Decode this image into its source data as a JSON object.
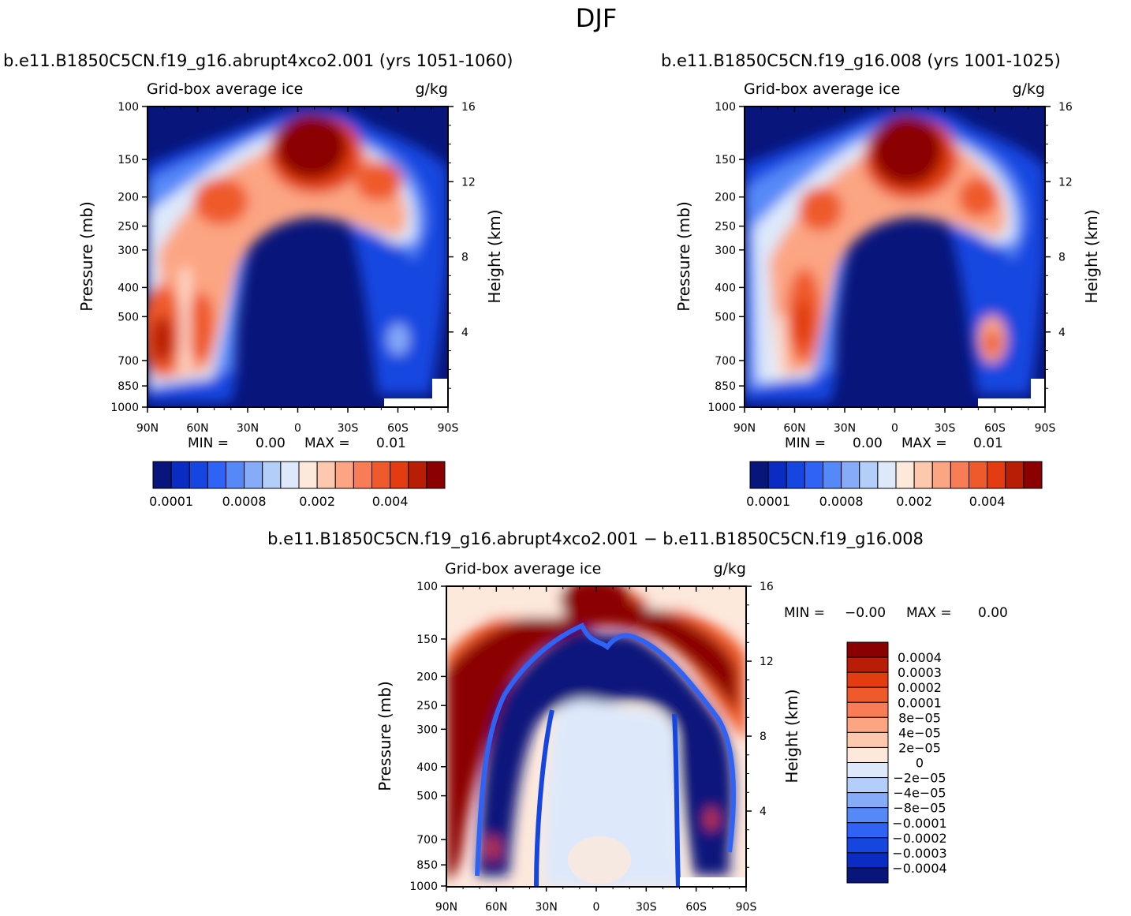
{
  "figure": {
    "title": "DJF",
    "units_label": "g/kg",
    "variable_label": "Grid-box average ice",
    "y_left_label": "Pressure (mb)",
    "y_right_label": "Height (km)"
  },
  "chart_data": [
    {
      "type": "heatmap",
      "title": "b.e11.B1850C5CN.f19_g16.abrupt4xco2.001 (yrs 1051-1060)",
      "subtitle": "Grid-box average ice",
      "units": "g/kg",
      "ylabel": "Pressure (mb)",
      "y2label": "Height (km)",
      "x_ticks": [
        "90N",
        "60N",
        "30N",
        "0",
        "30S",
        "60S",
        "90S"
      ],
      "y_ticks": [
        100,
        150,
        200,
        250,
        300,
        400,
        500,
        700,
        850,
        1000
      ],
      "y2_ticks": [
        16,
        12,
        8,
        4
      ],
      "ylim": [
        1000,
        100
      ],
      "min_text": "MIN =",
      "min_value": "0.00",
      "max_text": "MAX =",
      "max_value": "0.01",
      "colorbar_levels": [
        0.0001,
        0.0002,
        0.0004,
        0.0006,
        0.0008,
        0.001,
        0.0012,
        0.0015,
        0.002,
        0.0025,
        0.003,
        0.0035,
        0.004,
        0.0045,
        0.005
      ],
      "colorbar_tick_labels": [
        "0.0001",
        "0.0008",
        "0.002",
        "0.004"
      ],
      "colors": [
        "#08157b",
        "#0a2cc2",
        "#1547e0",
        "#2e63f5",
        "#5689f8",
        "#86abf9",
        "#b4cefa",
        "#dde9fb",
        "#fde8dc",
        "#fdc8ad",
        "#fca583",
        "#f87c55",
        "#ef5a2c",
        "#e23c10",
        "#b81d06",
        "#8b0000"
      ]
    },
    {
      "type": "heatmap",
      "title": "b.e11.B1850C5CN.f19_g16.008 (yrs 1001-1025)",
      "subtitle": "Grid-box average ice",
      "units": "g/kg",
      "ylabel": "Pressure (mb)",
      "y2label": "Height (km)",
      "x_ticks": [
        "90N",
        "60N",
        "30N",
        "0",
        "30S",
        "60S",
        "90S"
      ],
      "y_ticks": [
        100,
        150,
        200,
        250,
        300,
        400,
        500,
        700,
        850,
        1000
      ],
      "y2_ticks": [
        16,
        12,
        8,
        4
      ],
      "ylim": [
        1000,
        100
      ],
      "min_text": "MIN =",
      "min_value": "0.00",
      "max_text": "MAX =",
      "max_value": "0.01",
      "colorbar_levels": [
        0.0001,
        0.0002,
        0.0004,
        0.0006,
        0.0008,
        0.001,
        0.0012,
        0.0015,
        0.002,
        0.0025,
        0.003,
        0.0035,
        0.004,
        0.0045,
        0.005
      ],
      "colorbar_tick_labels": [
        "0.0001",
        "0.0008",
        "0.002",
        "0.004"
      ],
      "colors": [
        "#08157b",
        "#0a2cc2",
        "#1547e0",
        "#2e63f5",
        "#5689f8",
        "#86abf9",
        "#b4cefa",
        "#dde9fb",
        "#fde8dc",
        "#fdc8ad",
        "#fca583",
        "#f87c55",
        "#ef5a2c",
        "#e23c10",
        "#b81d06",
        "#8b0000"
      ]
    },
    {
      "type": "heatmap",
      "title": "b.e11.B1850C5CN.f19_g16.abrupt4xco2.001 − b.e11.B1850C5CN.f19_g16.008",
      "subtitle": "Grid-box average ice",
      "units": "g/kg",
      "ylabel": "Pressure (mb)",
      "y2label": "Height (km)",
      "x_ticks": [
        "90N",
        "60N",
        "30N",
        "0",
        "30S",
        "60S",
        "90S"
      ],
      "y_ticks": [
        100,
        150,
        200,
        250,
        300,
        400,
        500,
        700,
        850,
        1000
      ],
      "y2_ticks": [
        16,
        12,
        8,
        4
      ],
      "ylim": [
        1000,
        100
      ],
      "min_text": "MIN =",
      "min_value": "−0.00",
      "max_text": "MAX =",
      "max_value": "0.00",
      "colorbar_labels": [
        "0.0004",
        "0.0003",
        "0.0002",
        "0.0001",
        "8e−05",
        "4e−05",
        "2e−05",
        "0",
        "−2e−05",
        "−4e−05",
        "−8e−05",
        "−0.0001",
        "−0.0002",
        "−0.0003",
        "−0.0004"
      ],
      "colors": [
        "#8b0000",
        "#b81d06",
        "#e23c10",
        "#ef5a2c",
        "#f87c55",
        "#fca583",
        "#fdc8ad",
        "#fde8dc",
        "#dde9fb",
        "#b4cefa",
        "#86abf9",
        "#5689f8",
        "#2e63f5",
        "#1547e0",
        "#0a2cc2",
        "#08157b"
      ]
    }
  ]
}
